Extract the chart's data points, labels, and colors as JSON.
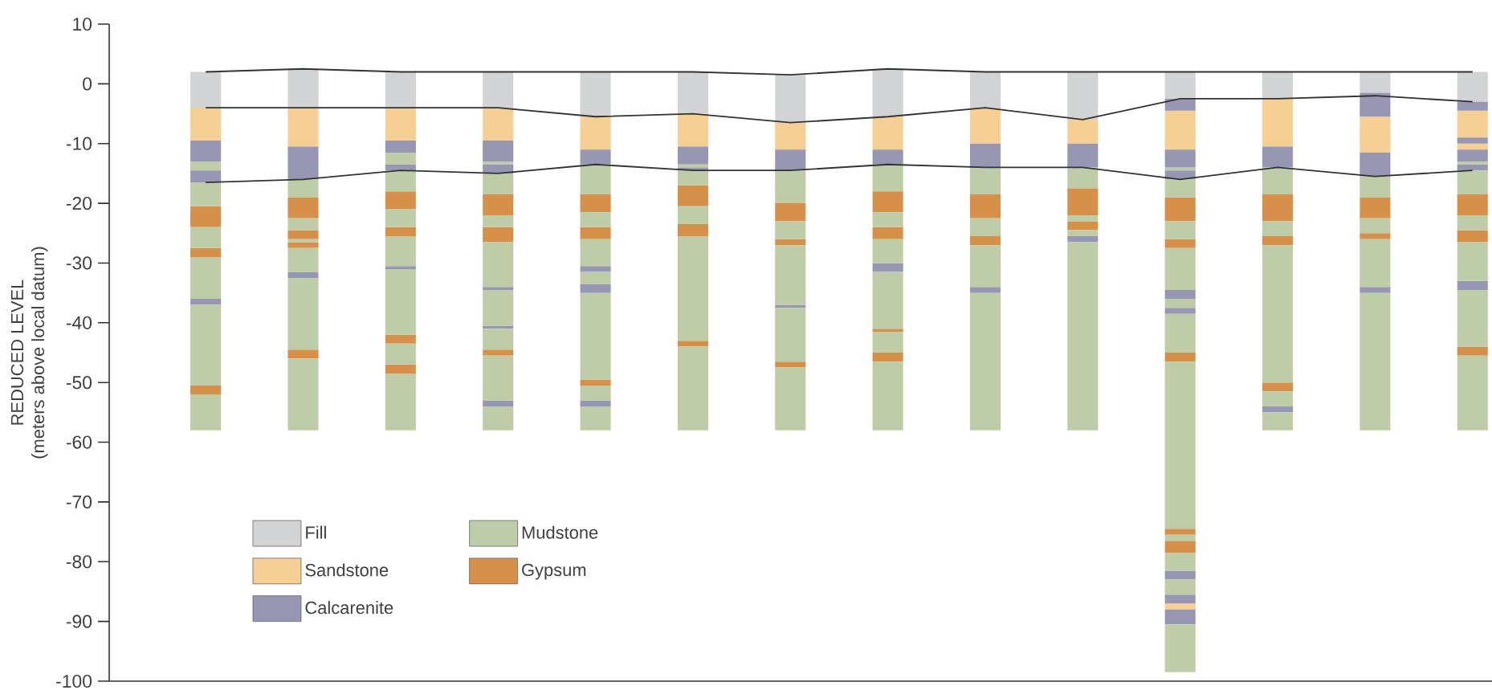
{
  "chart_data": {
    "type": "bar",
    "ylabel": "REDUCED LEVEL\n(meters above local datum)",
    "categories": [
      null,
      null,
      null,
      null,
      null,
      null,
      null,
      null,
      null,
      null,
      null,
      null,
      null,
      null
    ],
    "ylim": [
      -100,
      10
    ],
    "yticks": [
      -100,
      -90,
      -80,
      -70,
      -60,
      -50,
      -40,
      -30,
      -20,
      -10,
      0,
      10
    ],
    "tick_labels": "y",
    "legend": "bottom left",
    "series": [
      {
        "type": "line",
        "color": "#333333",
        "values": [
          2,
          2.5,
          2,
          2,
          2,
          2,
          1.5,
          2.5,
          2,
          2,
          2,
          2,
          2,
          2
        ]
      },
      {
        "type": "line",
        "color": "#333333",
        "values": [
          -4,
          -4,
          -4,
          -4,
          -5.5,
          -5,
          -6.5,
          -5.5,
          -4,
          -6,
          -2.5,
          -2.5,
          -2,
          -3
        ]
      },
      {
        "type": "line",
        "color": "#333333",
        "values": [
          -16.5,
          -16,
          -14.5,
          -15,
          -13.5,
          -14.5,
          -14.5,
          -13.5,
          -14,
          -14,
          -16,
          -14,
          -15.5,
          -14.5
        ]
      },
      {
        "name": "Fill",
        "color": "#d2d3d5",
        "base": [
          -4,
          -4,
          -4,
          -4,
          -5.5,
          -5,
          -6.5,
          -5.5,
          -4,
          -6,
          -2.5,
          -2.5,
          -1.5,
          -3
        ],
        "values": [
          6,
          6.5,
          6,
          6,
          7.5,
          7,
          8,
          8,
          6,
          8,
          4.5,
          4.5,
          3.5,
          5
        ]
      },
      {
        "name": "Sandstone",
        "color": "#f5cf94",
        "base": [
          -9.5,
          -10.5,
          -9.5,
          -9.5,
          -11,
          -10.5,
          -11,
          -11,
          -10,
          -10,
          -11,
          -10.5,
          -11.5,
          -9
        ],
        "values": [
          5.5,
          6.5,
          5.5,
          5.5,
          5.5,
          5.5,
          4.5,
          5.5,
          6,
          4,
          6.5,
          8,
          6,
          4.5
        ]
      },
      {
        "name": "Calcarenite",
        "color": "#9796b3",
        "base": [
          -13,
          -16,
          -11.5,
          -13,
          -13.5,
          -13.5,
          -14.5,
          -13.5,
          -14,
          -14,
          -4.5,
          -14,
          -5.5,
          -4.5
        ],
        "values": [
          3.5,
          5.5,
          2,
          3.5,
          2.5,
          3,
          3.5,
          2.5,
          4,
          4,
          2,
          3.5,
          4,
          1.5
        ]
      },
      {
        "name": "Mudstone",
        "color": "#becda8",
        "base": [
          -14.5,
          -19,
          -13.5,
          -13.5,
          -18.5,
          -14,
          -20,
          -18,
          -18.5,
          -17.5,
          -14.5,
          -18.5,
          -19,
          -13.5
        ],
        "values": [
          1.5,
          3,
          2,
          0.5,
          5,
          0.5,
          5.5,
          4.5,
          4.5,
          3.5,
          0.5,
          4.5,
          3.5,
          0.5
        ]
      },
      {
        "name": "Gypsum",
        "color": "#d6904a",
        "base": [
          -24,
          -22.5,
          -21,
          -22,
          -21.5,
          -20.5,
          -23,
          -21.5,
          -22.5,
          -22,
          -23,
          -23,
          -22.5,
          -22
        ],
        "values": [
          3.5,
          3.5,
          3,
          3.5,
          3,
          3.5,
          3,
          3.5,
          4,
          4.5,
          4,
          4.5,
          3.5,
          3.5
        ]
      },
      {
        "color": "#f5cf94",
        "base": [
          null,
          null,
          null,
          null,
          null,
          null,
          null,
          null,
          null,
          null,
          -88,
          null,
          null,
          -11
        ],
        "values": [
          null,
          null,
          null,
          null,
          null,
          null,
          null,
          null,
          null,
          null,
          1,
          null,
          null,
          1
        ]
      },
      {
        "color": "#9796b3",
        "base": [
          -16.5,
          -32.5,
          -14.5,
          -15,
          -31.5,
          -14.5,
          -37.5,
          -31.5,
          -35,
          -26.5,
          -14,
          -55,
          -15.5,
          -10
        ],
        "values": [
          2,
          1,
          1,
          1.5,
          1,
          0.5,
          0.5,
          1.5,
          1,
          1,
          3,
          1,
          4,
          1
        ]
      },
      {
        "color": "#9796b3",
        "base": [
          -37,
          null,
          -31,
          -34.5,
          -35,
          null,
          null,
          null,
          null,
          null,
          -16,
          null,
          -35,
          -13
        ],
        "values": [
          1,
          null,
          0.5,
          0.5,
          1.5,
          null,
          null,
          null,
          null,
          null,
          1.5,
          null,
          1,
          2
        ]
      },
      {
        "color": "#9796b3",
        "base": [
          null,
          null,
          null,
          -41,
          -54,
          null,
          null,
          null,
          null,
          null,
          -36,
          null,
          null,
          -14.5
        ],
        "values": [
          null,
          null,
          null,
          0.5,
          1,
          null,
          null,
          null,
          null,
          null,
          1.5,
          null,
          null,
          1
        ]
      },
      {
        "color": "#9796b3",
        "base": [
          null,
          null,
          null,
          -54,
          null,
          null,
          null,
          null,
          null,
          null,
          -38.5,
          null,
          null,
          -34.5
        ],
        "values": [
          null,
          null,
          null,
          1,
          null,
          null,
          null,
          null,
          null,
          null,
          1,
          null,
          null,
          1.5
        ]
      },
      {
        "color": "#9796b3",
        "base": [
          null,
          null,
          null,
          null,
          null,
          null,
          null,
          null,
          null,
          null,
          -83,
          null,
          null,
          null
        ],
        "values": [
          null,
          null,
          null,
          null,
          null,
          null,
          null,
          null,
          null,
          null,
          1.5,
          null,
          null,
          null
        ]
      },
      {
        "color": "#9796b3",
        "base": [
          null,
          null,
          null,
          null,
          null,
          null,
          null,
          null,
          null,
          null,
          -87,
          null,
          null,
          null
        ],
        "values": [
          null,
          null,
          null,
          null,
          null,
          null,
          null,
          null,
          null,
          null,
          1.5,
          null,
          null,
          null
        ]
      },
      {
        "color": "#9796b3",
        "base": [
          null,
          null,
          null,
          null,
          null,
          null,
          null,
          null,
          null,
          null,
          -90.5,
          null,
          null,
          null
        ],
        "values": [
          null,
          null,
          null,
          null,
          null,
          null,
          null,
          null,
          null,
          null,
          2.5,
          null,
          null,
          null
        ]
      },
      {
        "color": "#d6904a",
        "base": [
          -29,
          -26,
          -25.5,
          -26.5,
          -26,
          -25.5,
          -27,
          -26,
          -27,
          -24.5,
          -27.5,
          -27,
          -26,
          -26.5
        ],
        "values": [
          1.5,
          1.5,
          1.5,
          2.5,
          2,
          2,
          1,
          2,
          1.5,
          1.5,
          1.5,
          1.5,
          1,
          2
        ]
      },
      {
        "color": "#d6904a",
        "base": [
          -52,
          -27.5,
          -43.5,
          -45.5,
          -50.5,
          -44,
          -47.5,
          -41.5,
          null,
          null,
          -46.5,
          -51.5,
          null,
          -45.5
        ],
        "values": [
          1.5,
          1,
          1.5,
          1,
          1,
          1,
          1,
          0.5,
          null,
          null,
          1.5,
          1.5,
          null,
          1.5
        ]
      },
      {
        "color": "#d6904a",
        "base": [
          null,
          -46,
          -48.5,
          null,
          null,
          null,
          null,
          -46.5,
          null,
          null,
          -75.5,
          null,
          null,
          null
        ],
        "values": [
          null,
          1.5,
          1.5,
          null,
          null,
          null,
          null,
          1.5,
          null,
          null,
          1,
          null,
          null,
          null
        ]
      },
      {
        "color": "#d6904a",
        "base": [
          null,
          null,
          null,
          null,
          null,
          null,
          null,
          null,
          null,
          null,
          -78.5,
          null,
          null,
          null
        ],
        "values": [
          null,
          null,
          null,
          null,
          null,
          null,
          null,
          null,
          null,
          null,
          2,
          null,
          null,
          null
        ]
      },
      {
        "color": "#becda8",
        "base": [
          -20.5,
          -24.5,
          -18,
          -18.5,
          -24,
          -17,
          -26,
          -24,
          -25.5,
          -23,
          -19,
          -25.5,
          -25,
          -18.5
        ],
        "values": [
          4,
          2,
          3.5,
          3.5,
          2.5,
          2.5,
          3,
          2.5,
          3,
          1,
          3,
          2.5,
          2.5,
          4
        ]
      },
      {
        "color": "#becda8",
        "base": [
          -27.5,
          -26.5,
          -24,
          -24,
          -30.5,
          -23.5,
          -37,
          -30,
          -34,
          -25.5,
          -26,
          -50,
          -34,
          -24.5
        ],
        "values": [
          3.5,
          0.5,
          3,
          2,
          4.5,
          3,
          10,
          4,
          7,
          1,
          3,
          23,
          8,
          2.5
        ]
      },
      {
        "color": "#becda8",
        "base": [
          -36,
          -31.5,
          -30.5,
          -34,
          -33.5,
          -43,
          -46.5,
          -41,
          -58,
          -58,
          -34.5,
          -54,
          -58,
          -33
        ],
        "values": [
          7,
          4,
          5,
          7.5,
          2,
          17.5,
          9,
          9.5,
          23,
          31.5,
          7,
          2.5,
          23,
          6.5
        ]
      },
      {
        "color": "#becda8",
        "base": [
          -50.5,
          -44.5,
          -42,
          -40.5,
          -49.5,
          -58,
          -58,
          -45,
          null,
          null,
          -37.5,
          -58,
          null,
          -44
        ],
        "values": [
          13.5,
          12,
          11,
          6,
          14.5,
          14,
          10.5,
          3.5,
          null,
          null,
          1.5,
          3,
          null,
          9.5
        ]
      },
      {
        "color": "#becda8",
        "base": [
          -58,
          -58,
          -47,
          -44.5,
          -53,
          null,
          null,
          -58,
          null,
          null,
          -45,
          null,
          null,
          -58
        ],
        "values": [
          6,
          12,
          3.5,
          3.5,
          2.5,
          null,
          null,
          11.5,
          null,
          null,
          6.5,
          null,
          null,
          12.5
        ]
      },
      {
        "color": "#becda8",
        "base": [
          null,
          null,
          -58,
          -53,
          -58,
          null,
          null,
          null,
          null,
          null,
          -74.5,
          null,
          null,
          null
        ],
        "values": [
          null,
          null,
          9.5,
          7.5,
          4,
          null,
          null,
          null,
          null,
          null,
          28,
          null,
          null,
          null
        ]
      },
      {
        "color": "#becda8",
        "base": [
          null,
          null,
          null,
          -58,
          null,
          null,
          null,
          null,
          null,
          null,
          -76.5,
          null,
          null,
          null
        ],
        "values": [
          null,
          null,
          null,
          4,
          null,
          null,
          null,
          null,
          null,
          null,
          1,
          null,
          null,
          null
        ]
      },
      {
        "color": "#becda8",
        "base": [
          null,
          null,
          null,
          null,
          null,
          null,
          null,
          null,
          null,
          null,
          -81.5,
          null,
          null,
          null
        ],
        "values": [
          null,
          null,
          null,
          null,
          null,
          null,
          null,
          null,
          null,
          null,
          3,
          null,
          null,
          null
        ]
      },
      {
        "color": "#becda8",
        "base": [
          null,
          null,
          null,
          null,
          null,
          null,
          null,
          null,
          null,
          null,
          -85.5,
          null,
          null,
          null
        ],
        "values": [
          null,
          null,
          null,
          null,
          null,
          null,
          null,
          null,
          null,
          null,
          2.5,
          null,
          null,
          null
        ]
      },
      {
        "color": "#becda8",
        "base": [
          null,
          null,
          null,
          null,
          null,
          null,
          null,
          null,
          null,
          null,
          -98.5,
          null,
          null,
          null
        ],
        "values": [
          null,
          null,
          null,
          null,
          null,
          null,
          null,
          null,
          null,
          null,
          8,
          null,
          null,
          null
        ]
      }
    ]
  }
}
